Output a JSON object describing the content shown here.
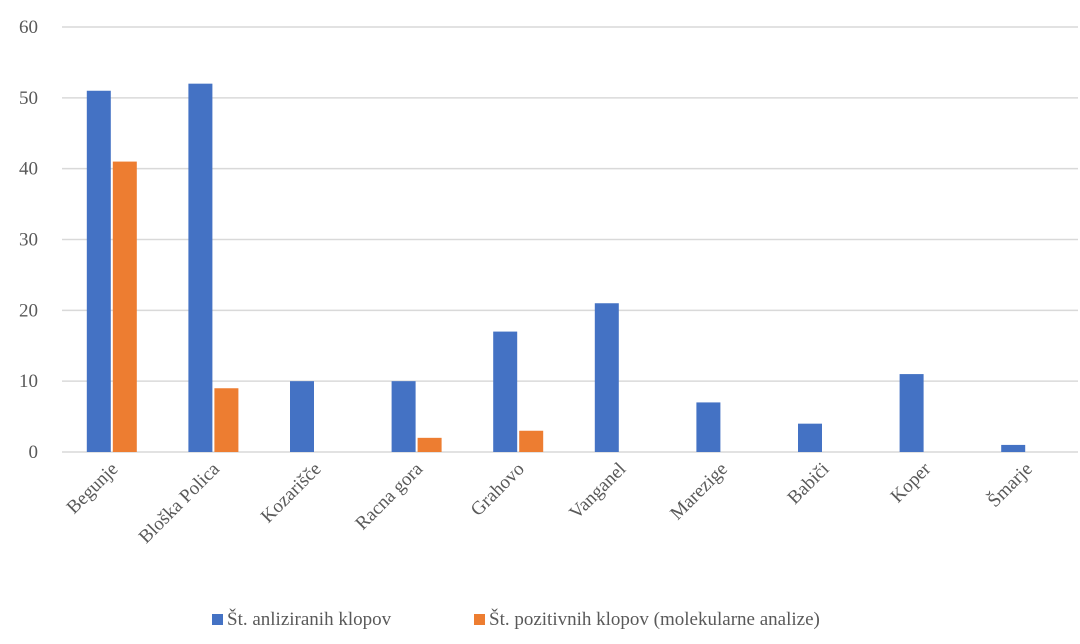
{
  "chart_data": {
    "type": "bar",
    "categories": [
      "Begunje",
      "Bloška Polica",
      "Kozarišče",
      "Racna gora",
      "Grahovo",
      "Vanganel",
      "Marezige",
      "Babiči",
      "Koper",
      "Šmarje"
    ],
    "series": [
      {
        "name": "Št. anliziranih klopov",
        "values": [
          51,
          52,
          10,
          10,
          17,
          21,
          7,
          4,
          11,
          1
        ],
        "color": "#4472C4"
      },
      {
        "name": "Št. pozitivnih klopov (molekularne analize)",
        "values": [
          41,
          9,
          0,
          2,
          3,
          0,
          0,
          0,
          0,
          0
        ],
        "color": "#ED7D31"
      }
    ],
    "ylim": [
      0,
      60
    ],
    "yticks": [
      0,
      10,
      20,
      30,
      40,
      50,
      60
    ],
    "grid": true,
    "legend": "bottom"
  }
}
